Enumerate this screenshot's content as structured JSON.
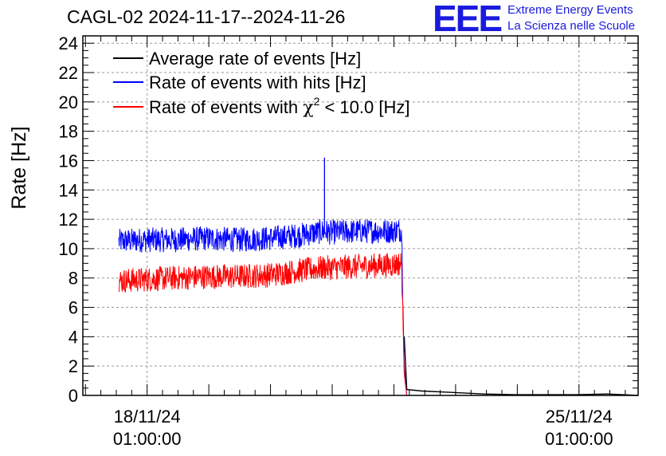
{
  "title": "CAGL-02 2024-11-17--2024-11-26",
  "logo": {
    "mark": "EEE",
    "line1": "Extreme Energy Events",
    "line2": "La Scienza nelle Scuole",
    "color": "#1a1adf"
  },
  "chart_data": {
    "type": "line",
    "title": "CAGL-02 2024-11-17--2024-11-26",
    "xlabel": "",
    "ylabel": "Rate [Hz]",
    "ylim": [
      0,
      24.5
    ],
    "yticks": [
      0,
      2,
      4,
      6,
      8,
      10,
      12,
      14,
      16,
      18,
      20,
      22,
      24
    ],
    "xlim": [
      "2024-11-17 00:00",
      "2024-11-26 00:00"
    ],
    "xticks": [
      {
        "date": "2024-11-18 01:00",
        "label1": "18/11/24",
        "label2": "01:00:00"
      },
      {
        "date": "2024-11-25 01:00",
        "label1": "25/11/24",
        "label2": "01:00:00"
      }
    ],
    "grid": true,
    "legend_position": "top-left",
    "legend": [
      {
        "label": "Average rate of events [Hz]",
        "color": "#000000"
      },
      {
        "label": "Rate of events with hits [Hz]",
        "color": "#0000ff"
      },
      {
        "label_pre": "Rate of events with ",
        "label_chi": "χ",
        "label_sup": "2",
        "label_post": " < 10.0 [Hz]",
        "color": "#ff0000"
      }
    ],
    "series": [
      {
        "name": "Rate of events with hits [Hz]",
        "color": "#0000ff",
        "x": [
          "2024-11-17 14:00",
          "2024-11-18 00:00",
          "2024-11-18 12:00",
          "2024-11-19 00:00",
          "2024-11-19 12:00",
          "2024-11-20 00:00",
          "2024-11-20 12:00",
          "2024-11-20 22:00",
          "2024-11-21 00:00",
          "2024-11-21 12:00",
          "2024-11-22 00:00",
          "2024-11-22 04:00",
          "2024-11-22 05:00",
          "2024-11-22 06:00"
        ],
        "y": [
          10.5,
          10.6,
          10.6,
          10.7,
          10.6,
          10.7,
          10.9,
          11.2,
          11.1,
          11.2,
          11.2,
          11.3,
          2.0,
          0.0
        ],
        "spike": {
          "x": "2024-11-20 22:00",
          "y": 16.2
        }
      },
      {
        "name": "Rate of events with χ2 < 10.0 [Hz]",
        "color": "#ff0000",
        "x": [
          "2024-11-17 14:00",
          "2024-11-18 00:00",
          "2024-11-18 12:00",
          "2024-11-19 00:00",
          "2024-11-19 12:00",
          "2024-11-20 00:00",
          "2024-11-20 12:00",
          "2024-11-20 22:00",
          "2024-11-21 00:00",
          "2024-11-21 12:00",
          "2024-11-22 00:00",
          "2024-11-22 04:00",
          "2024-11-22 05:00",
          "2024-11-22 06:00",
          "2024-11-26 00:00"
        ],
        "y": [
          7.8,
          7.9,
          8.0,
          8.1,
          8.1,
          8.2,
          8.5,
          8.7,
          8.7,
          8.8,
          8.9,
          9.0,
          1.5,
          0.0,
          0.0
        ]
      },
      {
        "name": "Average rate of events [Hz]",
        "color": "#000000",
        "x": [
          "2024-11-22 05:00",
          "2024-11-22 06:00",
          "2024-11-22 12:00",
          "2024-11-23 00:00",
          "2024-11-23 12:00",
          "2024-11-24 00:00",
          "2024-11-25 00:00",
          "2024-11-25 12:00",
          "2024-11-26 00:00"
        ],
        "y": [
          4.0,
          0.4,
          0.3,
          0.2,
          0.1,
          0.05,
          0.05,
          0.1,
          0.0
        ]
      }
    ]
  }
}
